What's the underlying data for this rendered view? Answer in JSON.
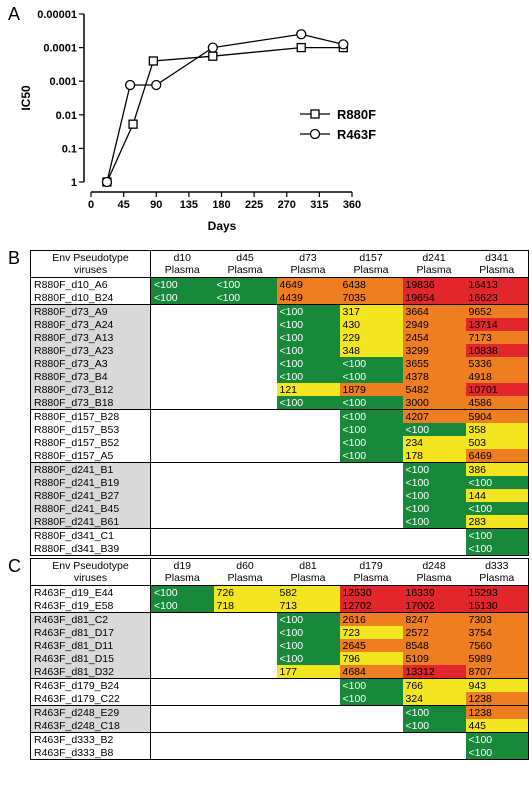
{
  "chart_data": {
    "type": "line",
    "panel_label": "A",
    "x_label": "Days",
    "y_label": "IC50",
    "log_scale": true,
    "ylim": [
      1,
      1e-05
    ],
    "yticks": [
      1,
      0.1,
      0.01,
      {
        "value": 0.001,
        "label": "0.001"
      },
      {
        "value": 0.0001,
        "label": "0.0001"
      },
      {
        "value": 1e-05,
        "label": "0.00001"
      }
    ],
    "xlim": [
      0,
      360
    ],
    "xticks": [
      0,
      45,
      90,
      135,
      180,
      225,
      270,
      315,
      360
    ],
    "legend": "right",
    "series": [
      {
        "name": "R880F",
        "marker": "square",
        "color": "#000000",
        "x": [
          22,
          58,
          86,
          168,
          290,
          348
        ],
        "values": [
          1,
          0.019,
          0.00025,
          0.00018,
          0.0001,
          0.0001
        ]
      },
      {
        "name": "R463F",
        "marker": "circle",
        "color": "#000000",
        "x": [
          22,
          54,
          90,
          168,
          290,
          348
        ],
        "values": [
          1,
          0.0013,
          0.0013,
          0.0001,
          4e-05,
          8e-05
        ]
      }
    ]
  },
  "color_scale": {
    "thresholds": [
      100,
      1000,
      10000
    ],
    "colors": [
      "#18893b",
      "#f3e520",
      "#ef7e22",
      "#e1272b"
    ],
    "text_colors": [
      "#ffffff",
      "#000000",
      "#000000",
      "#000000"
    ],
    "name_shade": "#d9d9d9"
  },
  "table_b": {
    "panel_label": "B",
    "header": [
      "Env Pseudotype\nviruses",
      "d10\nPlasma",
      "d45\nPlasma",
      "d73\nPlasma",
      "d157\nPlasma",
      "d241\nPlasma",
      "d341\nPlasma"
    ],
    "groups": [
      [
        [
          "R880F_d10_A6",
          "<100",
          "<100",
          4649,
          6438,
          19836,
          16413
        ],
        [
          "R880F_d10_B24",
          "<100",
          "<100",
          4439,
          7035,
          19654,
          16623
        ]
      ],
      [
        [
          "R880F_d73_A9",
          null,
          null,
          "<100",
          317,
          3664,
          9652
        ],
        [
          "R880F_d73_A24",
          null,
          null,
          "<100",
          430,
          2949,
          13714
        ],
        [
          "R880F_d73_A13",
          null,
          null,
          "<100",
          229,
          2454,
          7173
        ],
        [
          "R880F_d73_A23",
          null,
          null,
          "<100",
          348,
          3299,
          10838
        ],
        [
          "R880F_d73_A3",
          null,
          null,
          "<100",
          "<100",
          3655,
          5336
        ],
        [
          "R880F_d73_B4",
          null,
          null,
          "<100",
          "<100",
          4378,
          4918
        ],
        [
          "R880F_d73_B12",
          null,
          null,
          121,
          1879,
          5482,
          10701
        ],
        [
          "R880F_d73_B18",
          null,
          null,
          "<100",
          "<100",
          3000,
          4586
        ]
      ],
      [
        [
          "R880F_d157_B28",
          null,
          null,
          null,
          "<100",
          4207,
          5904
        ],
        [
          "R880F_d157_B53",
          null,
          null,
          null,
          "<100",
          "<100",
          358
        ],
        [
          "R880F_d157_B52",
          null,
          null,
          null,
          "<100",
          234,
          503
        ],
        [
          "R880F_d157_A5",
          null,
          null,
          null,
          "<100",
          178,
          6469
        ]
      ],
      [
        [
          "R880F_d241_B1",
          null,
          null,
          null,
          null,
          "<100",
          386
        ],
        [
          "R880F_d241_B19",
          null,
          null,
          null,
          null,
          "<100",
          "<100"
        ],
        [
          "R880F_d241_B27",
          null,
          null,
          null,
          null,
          "<100",
          144
        ],
        [
          "R880F_d241_B45",
          null,
          null,
          null,
          null,
          "<100",
          "<100"
        ],
        [
          "R880F_d241_B61",
          null,
          null,
          null,
          null,
          "<100",
          283
        ]
      ],
      [
        [
          "R880F_d341_C1",
          null,
          null,
          null,
          null,
          null,
          "<100"
        ],
        [
          "R880F_d341_B39",
          null,
          null,
          null,
          null,
          null,
          "<100"
        ]
      ]
    ]
  },
  "table_c": {
    "panel_label": "C",
    "header": [
      "Env Pseudotype\nviruses",
      "d19\nPlasma",
      "d60\nPlasma",
      "d81\nPlasma",
      "d179\nPlasma",
      "d248\nPlasma",
      "d333\nPlasma"
    ],
    "groups": [
      [
        [
          "R463F_d19_E44",
          "<100",
          726,
          582,
          12530,
          16339,
          15293
        ],
        [
          "R463F_d19_E58",
          "<100",
          718,
          713,
          12702,
          17002,
          15130
        ]
      ],
      [
        [
          "R463F_d81_C2",
          null,
          null,
          "<100",
          2616,
          8247,
          7303
        ],
        [
          "R463F_d81_D17",
          null,
          null,
          "<100",
          723,
          2572,
          3754
        ],
        [
          "R463F_d81_D11",
          null,
          null,
          "<100",
          2645,
          8548,
          7560
        ],
        [
          "R463F_d81_D15",
          null,
          null,
          "<100",
          796,
          5109,
          5989
        ],
        [
          "R463F_d81_D32",
          null,
          null,
          177,
          4684,
          13312,
          8707
        ]
      ],
      [
        [
          "R463F_d179_B24",
          null,
          null,
          null,
          "<100",
          766,
          943
        ],
        [
          "R463F_d179_C22",
          null,
          null,
          null,
          "<100",
          324,
          1238
        ]
      ],
      [
        [
          "R463F_d248_E29",
          null,
          null,
          null,
          null,
          "<100",
          1238
        ],
        [
          "R463F_d248_C18",
          null,
          null,
          null,
          null,
          "<100",
          445
        ]
      ],
      [
        [
          "R463F_d333_B2",
          null,
          null,
          null,
          null,
          null,
          "<100"
        ],
        [
          "R463F_d333_B8",
          null,
          null,
          null,
          null,
          null,
          "<100"
        ]
      ]
    ]
  }
}
